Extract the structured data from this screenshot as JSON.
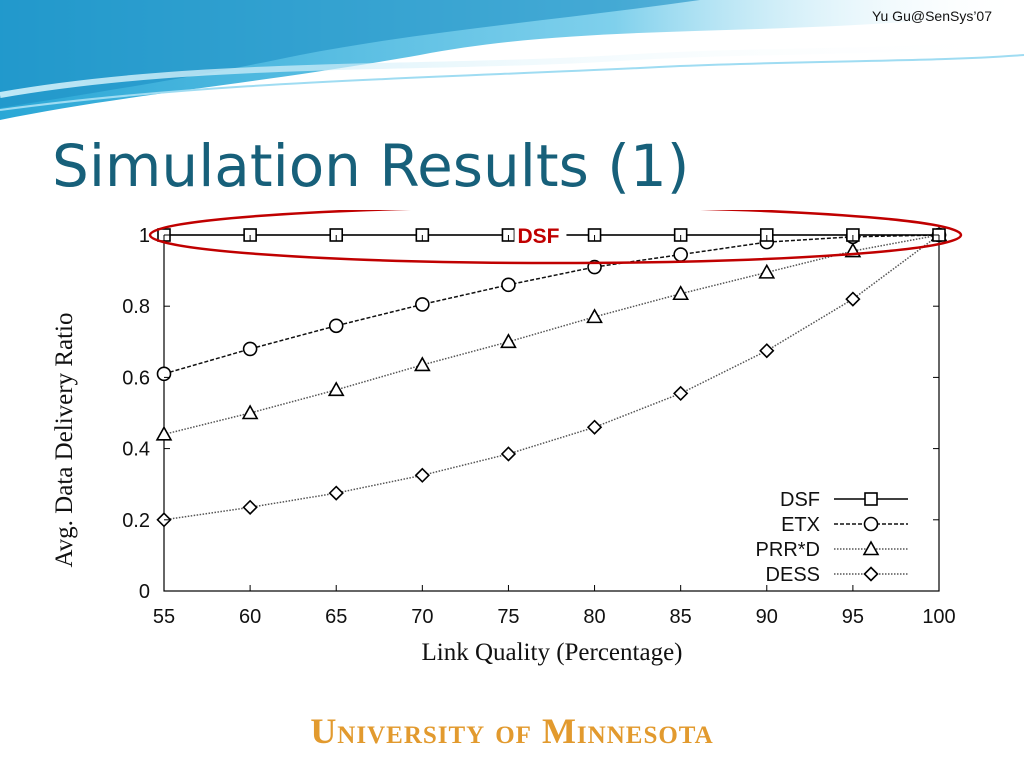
{
  "slide": {
    "credit": "Yu Gu@SenSys’07",
    "title": "Simulation Results (1)",
    "footer": "University of Minnesota"
  },
  "colors": {
    "title": "#17607a",
    "footer": "#e29a2e",
    "annotation": "#c00000"
  },
  "chart_data": {
    "type": "line",
    "x": [
      55,
      60,
      65,
      70,
      75,
      80,
      85,
      90,
      95,
      100
    ],
    "xlabel": "Link Quality (Percentage)",
    "ylabel": "Avg. Data Delivery Ratio",
    "xlim": [
      55,
      100
    ],
    "ylim": [
      0,
      1
    ],
    "xticks": [
      "55",
      "60",
      "65",
      "70",
      "75",
      "80",
      "85",
      "90",
      "95",
      "100"
    ],
    "yticks": [
      "0",
      "0.2",
      "0.4",
      "0.6",
      "0.8",
      "1"
    ],
    "legend_position": "bottom-right",
    "series": [
      {
        "name": "DSF",
        "marker": "square",
        "style": "solid",
        "values": [
          1.0,
          1.0,
          1.0,
          1.0,
          1.0,
          1.0,
          1.0,
          1.0,
          1.0,
          1.0
        ]
      },
      {
        "name": "ETX",
        "marker": "circle",
        "style": "dashed",
        "values": [
          0.61,
          0.68,
          0.745,
          0.805,
          0.86,
          0.91,
          0.945,
          0.98,
          0.995,
          1.0
        ]
      },
      {
        "name": "PRR*D",
        "marker": "triangle",
        "style": "dotted",
        "values": [
          0.44,
          0.5,
          0.565,
          0.635,
          0.7,
          0.77,
          0.835,
          0.895,
          0.955,
          1.0
        ]
      },
      {
        "name": "DESS",
        "marker": "diamond",
        "style": "dotted",
        "values": [
          0.2,
          0.235,
          0.275,
          0.325,
          0.385,
          0.46,
          0.555,
          0.675,
          0.82,
          1.0
        ]
      }
    ],
    "annotation": {
      "text": "DSF",
      "style": "red ellipse around top line"
    }
  }
}
